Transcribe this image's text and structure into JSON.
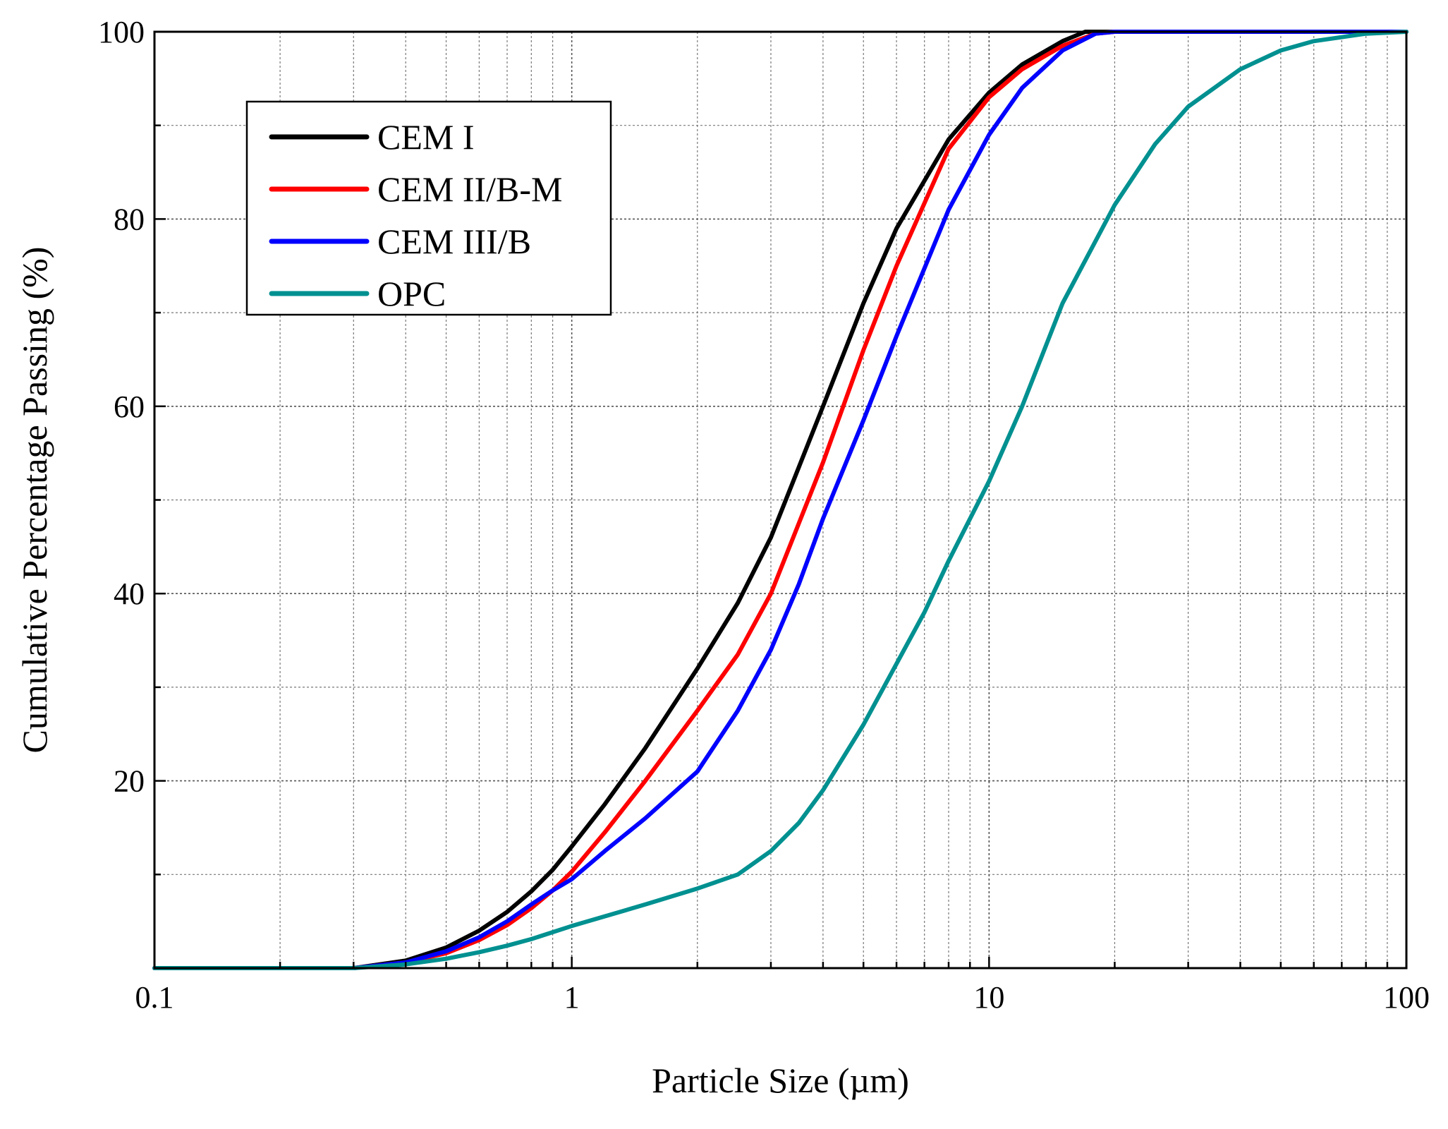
{
  "chart_data": {
    "type": "line",
    "title": "",
    "xlabel": "Particle Size (µm)",
    "ylabel": "Cumulative Percentage Passing (%)",
    "xscale": "log",
    "xlim": [
      0.1,
      100
    ],
    "ylim": [
      0,
      100
    ],
    "grid": true,
    "x_ticks": [
      "0.1",
      "1",
      "10",
      "100"
    ],
    "y_ticks": [
      "20",
      "40",
      "60",
      "80",
      "100"
    ],
    "legend_position": "top-left",
    "series": [
      {
        "name": "CEM I",
        "color": "#000000",
        "x": [
          0.1,
          0.3,
          0.4,
          0.5,
          0.6,
          0.7,
          0.8,
          0.9,
          1.0,
          1.2,
          1.5,
          2.0,
          2.5,
          3.0,
          3.5,
          4.0,
          5.0,
          6.0,
          8.0,
          10.0,
          12.0,
          15.0,
          17.0,
          20.0,
          100.0
        ],
        "y": [
          0,
          0,
          0.8,
          2.2,
          4.0,
          6.0,
          8.2,
          10.5,
          13.0,
          17.5,
          23.5,
          32.0,
          39.0,
          46.0,
          53.5,
          60.0,
          71.0,
          79.0,
          88.5,
          93.5,
          96.5,
          99.0,
          100.0,
          100.0,
          100.0
        ]
      },
      {
        "name": "CEM II/B-M",
        "color": "#ff0000",
        "x": [
          0.1,
          0.3,
          0.4,
          0.5,
          0.6,
          0.7,
          0.8,
          0.9,
          1.0,
          1.2,
          1.5,
          2.0,
          2.5,
          3.0,
          3.5,
          4.0,
          5.0,
          6.0,
          8.0,
          10.0,
          12.0,
          15.0,
          18.0,
          20.0,
          100.0
        ],
        "y": [
          0,
          0,
          0.6,
          1.6,
          3.0,
          4.6,
          6.4,
          8.3,
          10.3,
          14.5,
          20.0,
          27.5,
          33.5,
          40.0,
          47.5,
          54.0,
          66.0,
          75.0,
          87.5,
          93.0,
          96.0,
          98.5,
          99.8,
          100.0,
          100.0
        ]
      },
      {
        "name": "CEM III/B",
        "color": "#0000ff",
        "x": [
          0.1,
          0.3,
          0.4,
          0.5,
          0.6,
          0.7,
          0.8,
          0.9,
          1.0,
          1.2,
          1.5,
          2.0,
          2.5,
          3.0,
          3.5,
          4.0,
          5.0,
          6.0,
          8.0,
          10.0,
          12.0,
          15.0,
          18.0,
          20.0,
          100.0
        ],
        "y": [
          0,
          0,
          0.6,
          1.8,
          3.3,
          5.0,
          6.8,
          8.3,
          9.5,
          12.5,
          16.0,
          21.0,
          27.5,
          34.0,
          41.0,
          48.0,
          58.5,
          67.5,
          81.0,
          89.0,
          94.0,
          98.0,
          99.8,
          100.0,
          100.0
        ]
      },
      {
        "name": "OPC",
        "color": "#009090",
        "x": [
          0.1,
          0.3,
          0.4,
          0.5,
          0.6,
          0.7,
          0.8,
          1.0,
          1.5,
          2.0,
          2.5,
          3.0,
          3.5,
          4.0,
          5.0,
          6.0,
          7.0,
          8.0,
          10.0,
          12.0,
          15.0,
          20.0,
          25.0,
          30.0,
          40.0,
          50.0,
          60.0,
          80.0,
          100.0
        ],
        "y": [
          0,
          0,
          0.4,
          1.0,
          1.7,
          2.4,
          3.1,
          4.5,
          6.8,
          8.5,
          10.0,
          12.5,
          15.5,
          19.0,
          26.0,
          32.5,
          38.0,
          43.5,
          52.0,
          60.0,
          71.0,
          81.5,
          88.0,
          92.0,
          96.0,
          98.0,
          99.0,
          99.8,
          100.0
        ]
      }
    ]
  }
}
